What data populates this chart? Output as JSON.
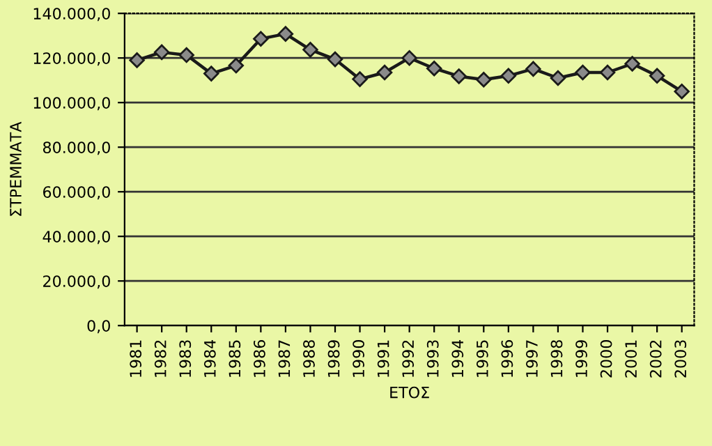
{
  "chart_data": {
    "type": "line",
    "xlabel": "ΕΤΟΣ",
    "ylabel": "ΣΤΡΕΜΜΑΤΑ",
    "categories": [
      "1981",
      "1982",
      "1983",
      "1984",
      "1985",
      "1986",
      "1987",
      "1988",
      "1989",
      "1990",
      "1991",
      "1992",
      "1993",
      "1994",
      "1995",
      "1996",
      "1997",
      "1998",
      "1999",
      "2000",
      "2001",
      "2002",
      "2003"
    ],
    "series": [
      {
        "color": "#1a1a1a",
        "values": [
          119000,
          122600,
          121300,
          113000,
          116600,
          128600,
          130800,
          123700,
          119400,
          110500,
          113500,
          120000,
          115300,
          111800,
          110300,
          112000,
          115100,
          111000,
          113500,
          113500,
          117400,
          112000,
          105000
        ]
      }
    ],
    "ylim": [
      0,
      140000
    ],
    "yticks": [
      {
        "value": 0,
        "label": "0,0"
      },
      {
        "value": 20000,
        "label": "20.000,0"
      },
      {
        "value": 40000,
        "label": "40.000,0"
      },
      {
        "value": 60000,
        "label": "60.000,0"
      },
      {
        "value": 80000,
        "label": "80.000,0"
      },
      {
        "value": 100000,
        "label": "100.000,0"
      },
      {
        "value": 120000,
        "label": "120.000,0"
      },
      {
        "value": 140000,
        "label": "140.000,0"
      }
    ],
    "grid": "y",
    "marker": "diamond",
    "line_style": "solid"
  }
}
